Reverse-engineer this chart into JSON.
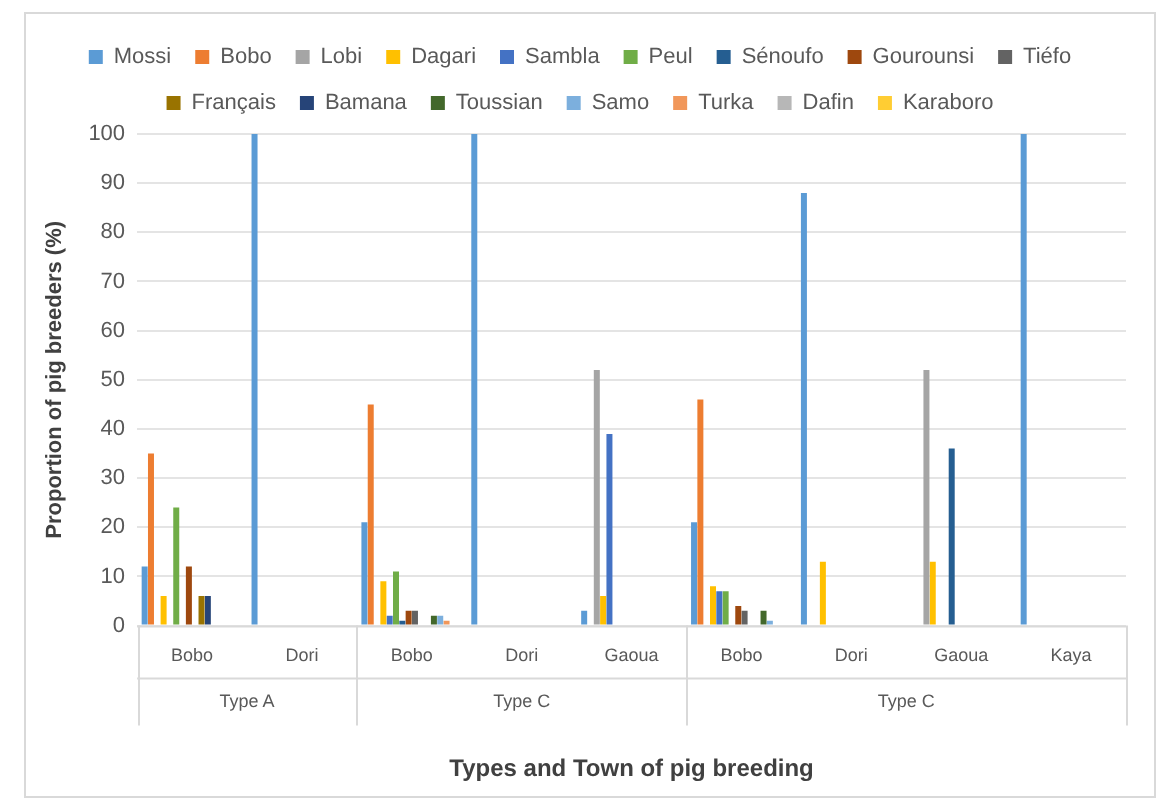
{
  "chart_data": {
    "type": "bar",
    "xlabel": "Types and Town of pig breeding",
    "ylabel": "Proportion of pig breeders (%)",
    "categories": [
      "Bobo",
      "Dori",
      "Bobo",
      "Dori",
      "Gaoua",
      "Bobo",
      "Dori",
      "Gaoua",
      "Kaya"
    ],
    "series": [
      {
        "name": "Mossi",
        "color": "#5b9bd5",
        "values": [
          12,
          100,
          21,
          100,
          3,
          21,
          88,
          0,
          100
        ]
      },
      {
        "name": "Bobo",
        "color": "#ed7d31",
        "values": [
          35,
          0,
          45,
          0,
          0,
          46,
          0,
          0,
          0
        ]
      },
      {
        "name": "Lobi",
        "color": "#a5a5a5",
        "values": [
          0,
          0,
          0,
          0,
          52,
          0,
          0,
          52,
          0
        ]
      },
      {
        "name": "Dagari",
        "color": "#ffc000",
        "values": [
          6,
          0,
          9,
          0,
          6,
          8,
          13,
          13,
          0
        ]
      },
      {
        "name": "Sambla",
        "color": "#4472c4",
        "values": [
          0,
          0,
          2,
          0,
          39,
          7,
          0,
          0,
          0
        ]
      },
      {
        "name": "Peul",
        "color": "#70ad47",
        "values": [
          24,
          0,
          11,
          0,
          0,
          7,
          0,
          0,
          0
        ]
      },
      {
        "name": "Sénoufo",
        "color": "#255e91",
        "values": [
          0,
          0,
          1,
          0,
          0,
          0,
          0,
          36,
          0
        ]
      },
      {
        "name": "Gourounsi",
        "color": "#9e480e",
        "values": [
          12,
          0,
          3,
          0,
          0,
          4,
          0,
          0,
          0
        ]
      },
      {
        "name": "Tiéfo",
        "color": "#636363",
        "values": [
          0,
          0,
          3,
          0,
          0,
          3,
          0,
          0,
          0
        ]
      },
      {
        "name": "Français",
        "color": "#997300",
        "values": [
          6,
          0,
          0,
          0,
          0,
          0,
          0,
          0,
          0
        ]
      },
      {
        "name": "Bamana",
        "color": "#264478",
        "values": [
          6,
          0,
          0,
          0,
          0,
          0,
          0,
          0,
          0
        ]
      },
      {
        "name": "Toussian",
        "color": "#43682b",
        "values": [
          0,
          0,
          2,
          0,
          0,
          3,
          0,
          0,
          0
        ]
      },
      {
        "name": "Samo",
        "color": "#7cafdd",
        "values": [
          0,
          0,
          2,
          0,
          0,
          1,
          0,
          0,
          0
        ]
      },
      {
        "name": "Turka",
        "color": "#f1975a",
        "values": [
          0,
          0,
          1,
          0,
          0,
          0,
          0,
          0,
          0
        ]
      },
      {
        "name": "Dafin",
        "color": "#b7b7b7",
        "values": [
          0,
          0,
          0,
          0,
          0,
          0,
          0,
          0,
          0
        ]
      },
      {
        "name": "Karaboro",
        "color": "#ffcd33",
        "values": [
          0,
          0,
          0,
          0,
          0,
          0,
          0,
          0,
          0
        ]
      }
    ],
    "ylim": [
      0,
      100
    ],
    "yticks": [
      0,
      10,
      20,
      30,
      40,
      50,
      60,
      70,
      80,
      90,
      100
    ],
    "grid": "y",
    "legend": "top",
    "annotations": [
      "Type A",
      "Type C",
      "Type C"
    ]
  }
}
